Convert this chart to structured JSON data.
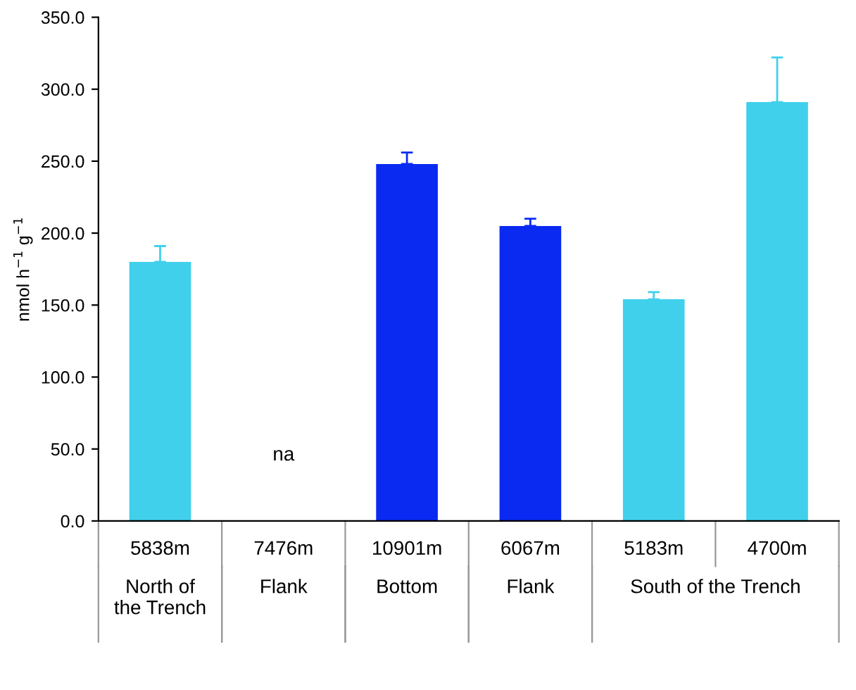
{
  "chart_data": {
    "type": "bar",
    "ylabel": "nmol h$^{−1}$ g$^{−1}$",
    "categories": [
      "5838m",
      "7476m",
      "10901m",
      "6067m",
      "5183m",
      "4700m"
    ],
    "values": [
      180,
      null,
      248,
      205,
      154,
      291
    ],
    "colors": [
      "#40d0ec",
      "#40d0ec",
      "#0a2af2",
      "#0a2af2",
      "#40d0ec",
      "#40d0ec"
    ],
    "errors": [
      [
        180,
        191
      ],
      null,
      [
        248,
        256
      ],
      [
        205,
        210
      ],
      [
        154,
        159
      ],
      [
        291,
        322
      ]
    ],
    "ylim": [
      0,
      350
    ],
    "yticks": [
      {
        "value": 0,
        "label": "0.0"
      },
      {
        "value": 50,
        "label": "50.0"
      },
      {
        "value": 100,
        "label": "100.0"
      },
      {
        "value": 150,
        "label": "150.0"
      },
      {
        "value": 200,
        "label": "200.0"
      },
      {
        "value": 250,
        "label": "250.0"
      },
      {
        "value": 300,
        "label": "300.0"
      },
      {
        "value": 350,
        "label": "350.0"
      }
    ],
    "annotations": [
      "na",
      "North of\nthe Trench",
      "Flank",
      "Bottom",
      "Flank",
      "South of the Trench"
    ],
    "grid": false
  }
}
